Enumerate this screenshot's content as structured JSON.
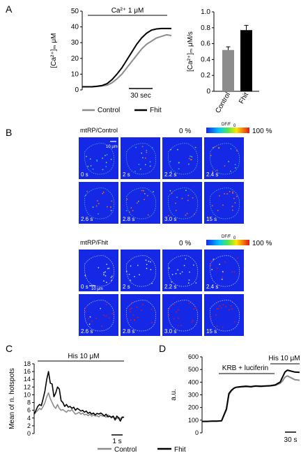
{
  "panels": [
    "A",
    "B",
    "C",
    "D"
  ],
  "colors": {
    "control": "#8c8c8c",
    "fhit": "#000000",
    "image_bg": "#1428e6"
  },
  "legend_A": {
    "control": "Control",
    "fhit": "Fhit"
  },
  "legend_bottom": {
    "control": "Control",
    "fhit": "Fhit"
  },
  "panelB": {
    "colorbar_label": "DF/F",
    "colorbar_sub": "0",
    "colorbar_min": "0 %",
    "colorbar_max": "100 %",
    "control": {
      "label": "mtRP/Control",
      "scale": "10 μm",
      "times": [
        "0 s",
        "2 s",
        "2.2 s",
        "2.4 s",
        "2.6 s",
        "2.8 s",
        "3.0 s",
        "15 s"
      ]
    },
    "fhit": {
      "label": "mtRP/Fhit",
      "scale": "10 μm",
      "times": [
        "0 s",
        "2 s",
        "2.2 s",
        "2.4 s",
        "2.6 s",
        "2.8 s",
        "3.0 s",
        "15 s"
      ]
    }
  },
  "chart_data": [
    {
      "panel": "A",
      "type": "line",
      "ylabel": "[Ca²⁺]ₘ μM",
      "annotation": "Ca²⁺ 1 μM",
      "scalebar": "30 sec",
      "ylim": [
        0,
        50
      ],
      "yticks": [
        "0",
        "10",
        "20",
        "30",
        "40",
        "50"
      ],
      "x": [
        0,
        10,
        20,
        30,
        40,
        50,
        60,
        70,
        80,
        90,
        100,
        110,
        120,
        130,
        140,
        150,
        160,
        170,
        180
      ],
      "series": [
        {
          "name": "Control",
          "values": [
            2,
            2,
            2,
            2.2,
            2.5,
            3,
            4.5,
            7,
            10,
            14,
            18,
            22,
            26,
            29,
            31,
            33,
            34,
            35,
            34.5
          ]
        },
        {
          "name": "Fhit",
          "values": [
            2,
            2,
            2,
            2.3,
            2.8,
            4,
            6.5,
            10,
            14,
            19,
            24,
            29,
            33,
            36,
            38,
            38.7,
            39,
            39,
            39
          ]
        }
      ]
    },
    {
      "panel": "A",
      "type": "bar",
      "ylabel": "[Ca²⁺]ₘ μM/s",
      "categories": [
        "Control",
        "Fhit"
      ],
      "values": [
        0.52,
        0.77
      ],
      "errors": [
        0.04,
        0.06
      ],
      "ylim": [
        0,
        1.0
      ],
      "yticks": [
        "0",
        "0.2",
        "0.4",
        "0.6",
        "0.8",
        "1.0"
      ]
    },
    {
      "panel": "C",
      "type": "line",
      "ylabel": "Mean of n. hotspots",
      "annotation": "His 10 μM",
      "scalebar": "1 s",
      "ylim": [
        0,
        18
      ],
      "yticks": [
        "0",
        "2",
        "4",
        "6",
        "8",
        "10",
        "12",
        "14",
        "16",
        "18"
      ],
      "x": [
        0,
        0.1,
        0.2,
        0.3,
        0.4,
        0.5,
        0.6,
        0.7,
        0.8,
        0.9,
        1.0,
        1.1,
        1.2,
        1.3,
        1.4,
        1.5,
        1.6,
        1.7,
        1.8,
        1.9,
        2.0,
        2.1,
        2.2,
        2.3,
        2.4,
        2.5,
        2.6,
        2.7,
        2.8,
        2.9,
        3.0,
        3.1,
        3.2,
        3.3,
        3.4,
        3.5,
        3.6,
        3.7,
        3.8,
        3.9,
        4.0,
        4.1,
        4.2,
        4.3,
        4.4,
        4.5,
        4.6,
        4.7,
        4.8,
        4.9,
        5.0
      ],
      "series": [
        {
          "name": "Control",
          "values": [
            5,
            5.5,
            6,
            6.5,
            6.2,
            7,
            8,
            9.5,
            10.5,
            9,
            8,
            7,
            6.5,
            7.5,
            6.5,
            6,
            6.2,
            5.8,
            5.5,
            6,
            5.8,
            6.2,
            5.5,
            5,
            5.2,
            5.5,
            5,
            5.3,
            4.8,
            5,
            4.6,
            5,
            4.5,
            4.8,
            4.5,
            4.6,
            4.3,
            4.8,
            4.5,
            4.6,
            4.2,
            4.8,
            4.5,
            4,
            4.3,
            4,
            3.8,
            4.2,
            3.8,
            4.3,
            4.2
          ]
        },
        {
          "name": "Fhit",
          "values": [
            5,
            6,
            7,
            7.5,
            7.2,
            9,
            11,
            14,
            16,
            13,
            12.8,
            9.5,
            10.5,
            12,
            11.5,
            8.5,
            8,
            7,
            7.5,
            6.8,
            7,
            6.5,
            6.8,
            6,
            6.5,
            6.2,
            5.8,
            6,
            5.5,
            5.8,
            5.2,
            5.5,
            5,
            5.3,
            4.8,
            5.2,
            5,
            5.3,
            5,
            4.5,
            5,
            4.3,
            4.5,
            4.2,
            4.5,
            3.5,
            4.5,
            4,
            3.2,
            4.2,
            4.2
          ]
        }
      ]
    },
    {
      "panel": "D",
      "type": "line",
      "ylabel": "a.u.",
      "annotations": [
        "KRB + luciferin",
        "His 10 μM"
      ],
      "scalebar": "30 s",
      "ylim": [
        0,
        600
      ],
      "yticks": [
        "0",
        "100",
        "200",
        "300",
        "400",
        "500",
        "600"
      ],
      "x": [
        0,
        10,
        20,
        30,
        40,
        50,
        55,
        60,
        65,
        70,
        80,
        90,
        100,
        110,
        120,
        130,
        140,
        150,
        160,
        165,
        170,
        175,
        180,
        190,
        200
      ],
      "series": [
        {
          "name": "Control",
          "values": [
            90,
            90,
            92,
            92,
            95,
            180,
            300,
            330,
            350,
            360,
            362,
            365,
            362,
            368,
            365,
            368,
            370,
            375,
            390,
            410,
            440,
            450,
            440,
            420,
            415
          ]
        },
        {
          "name": "Fhit",
          "values": [
            90,
            90,
            92,
            92,
            95,
            190,
            310,
            335,
            352,
            360,
            365,
            368,
            365,
            370,
            368,
            370,
            372,
            378,
            400,
            440,
            480,
            495,
            490,
            480,
            478
          ]
        }
      ]
    }
  ]
}
